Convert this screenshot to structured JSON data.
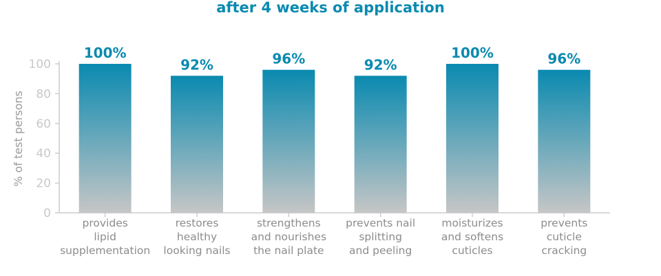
{
  "chart_data": {
    "type": "bar",
    "title": "after 4 weeks of application",
    "ylabel": "% of test persons",
    "ylim": [
      0,
      100
    ],
    "yticks": [
      0,
      20,
      40,
      60,
      80,
      100
    ],
    "categories": [
      [
        "provides",
        "lipid",
        "supplementation"
      ],
      [
        "restores",
        "healthy",
        "looking nails"
      ],
      [
        "strengthens",
        "and nourishes",
        "the nail plate"
      ],
      [
        "prevents nail",
        "splitting",
        "and peeling"
      ],
      [
        "moisturizes",
        "and softens",
        "cuticles"
      ],
      [
        "prevents",
        "cuticle",
        "cracking"
      ]
    ],
    "values": [
      100,
      92,
      96,
      92,
      100,
      96
    ],
    "data_labels": [
      "100%",
      "92%",
      "96%",
      "92%",
      "100%",
      "96%"
    ],
    "colors": {
      "bar_top": "#0a8ab0",
      "bar_bottom": "#c6c6c6",
      "axis": "#cccccc",
      "tick_text": "#c8c8c8",
      "label_text": "#0a8ab0"
    }
  }
}
